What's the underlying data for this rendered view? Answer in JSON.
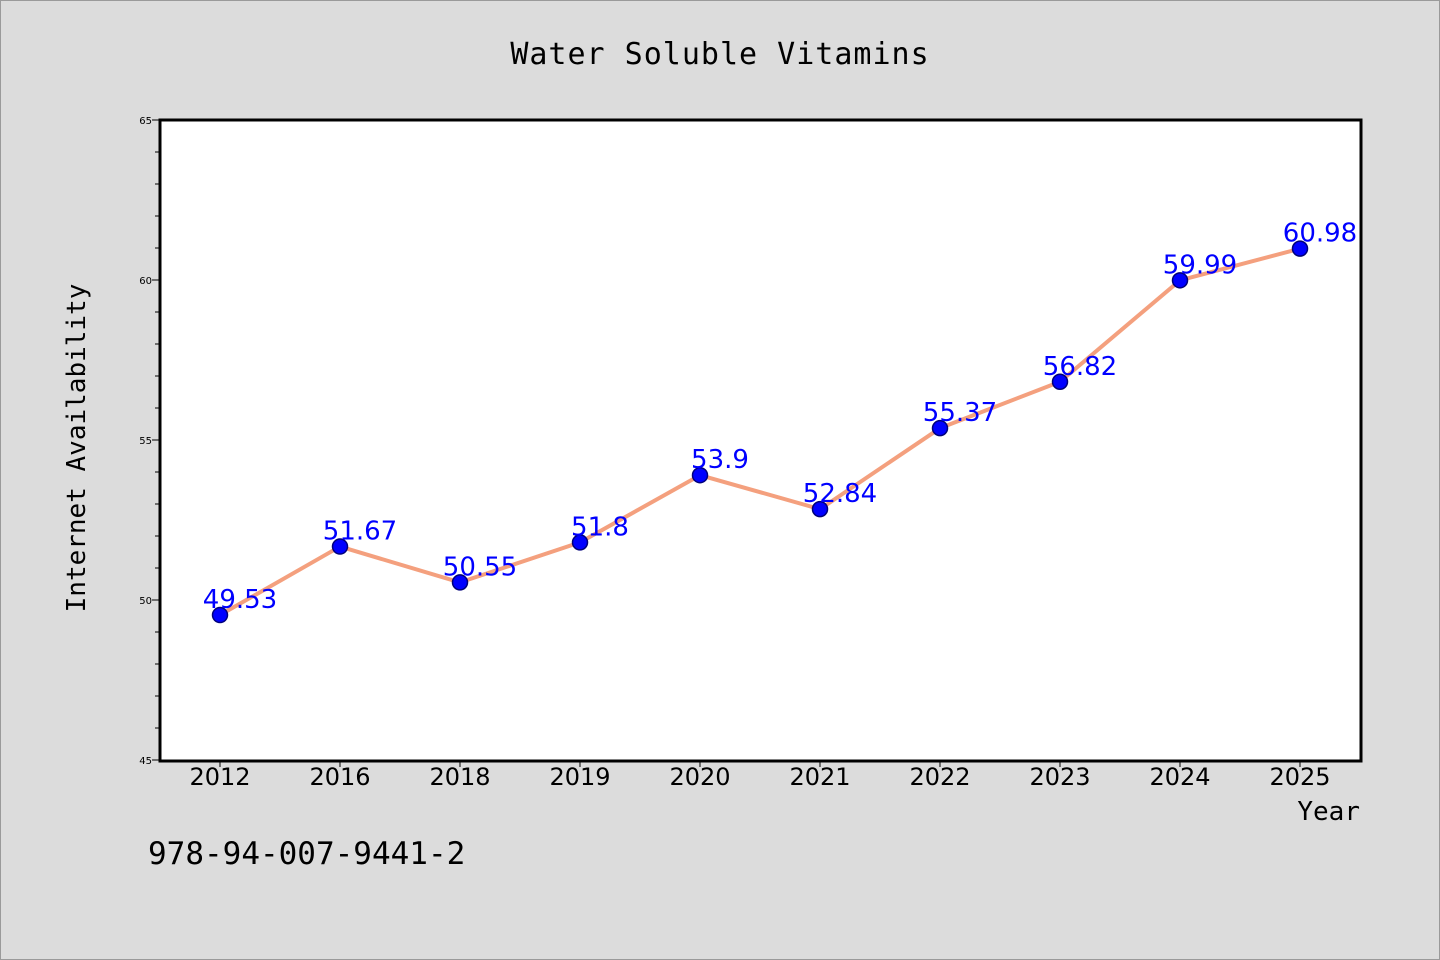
{
  "footer_code": "978-94-007-9441-2",
  "colors": {
    "background": "#dcdcdc",
    "plot_background": "#ffffff",
    "line": "#f4a07e",
    "marker": "#0000ff",
    "data_label": "#0000ff"
  },
  "chart_data": {
    "type": "line",
    "title": "Water Soluble Vitamins",
    "xlabel": "Year",
    "ylabel": "Internet Availability",
    "categories": [
      "2012",
      "2016",
      "2018",
      "2019",
      "2020",
      "2021",
      "2022",
      "2023",
      "2024",
      "2025"
    ],
    "values": [
      49.53,
      51.67,
      50.55,
      51.8,
      53.9,
      52.84,
      55.37,
      56.82,
      59.99,
      60.98
    ],
    "data_labels": [
      "49.53",
      "51.67",
      "50.55",
      "51.8",
      "53.9",
      "52.84",
      "55.37",
      "56.82",
      "59.99",
      "60.98"
    ],
    "ylim": [
      45,
      65
    ],
    "yticks": [
      "45",
      "50",
      "55",
      "60",
      "65"
    ],
    "grid": false,
    "legend": false
  }
}
